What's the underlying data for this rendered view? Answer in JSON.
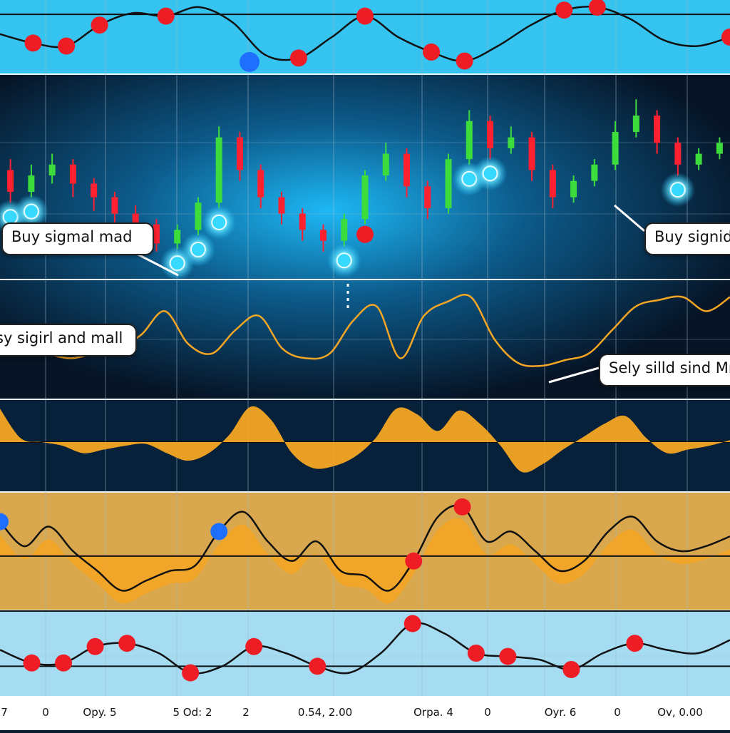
{
  "chart_data": [
    {
      "type": "line",
      "panel": "top-oscillator",
      "background": "#35c3f0",
      "series": [
        {
          "values": [
            0.55,
            0.4,
            0.35,
            0.7,
            0.9,
            0.85,
            1.0,
            0.75,
            0.2,
            0.15,
            0.5,
            0.85,
            0.5,
            0.25,
            0.1,
            0.35,
            0.7,
            0.95,
            1.0,
            0.8,
            0.45,
            0.35,
            0.5
          ],
          "line_color": "#111111"
        }
      ],
      "signal_points": [
        {
          "index": 1,
          "kind": "sell"
        },
        {
          "index": 2,
          "kind": "sell"
        },
        {
          "index": 3,
          "kind": "sell"
        },
        {
          "index": 5,
          "kind": "sell"
        },
        {
          "index": 9,
          "kind": "sell"
        },
        {
          "index": 11,
          "kind": "sell"
        },
        {
          "index": 13,
          "kind": "sell"
        },
        {
          "index": 14,
          "kind": "sell"
        },
        {
          "index": 17,
          "kind": "sell"
        },
        {
          "index": 18,
          "kind": "sell"
        },
        {
          "index": 22,
          "kind": "sell"
        }
      ],
      "reference_line": 0.88
    },
    {
      "type": "candlestick",
      "panel": "price",
      "background": "#0a2a44",
      "up_color": "#3ddc3d",
      "down_color": "#ff2030",
      "candles": [
        {
          "o": 60,
          "c": 52,
          "h": 64,
          "l": 48
        },
        {
          "o": 52,
          "c": 58,
          "h": 62,
          "l": 50
        },
        {
          "o": 58,
          "c": 62,
          "h": 66,
          "l": 55
        },
        {
          "o": 62,
          "c": 55,
          "h": 64,
          "l": 50
        },
        {
          "o": 55,
          "c": 50,
          "h": 57,
          "l": 45
        },
        {
          "o": 50,
          "c": 44,
          "h": 52,
          "l": 40
        },
        {
          "o": 44,
          "c": 40,
          "h": 47,
          "l": 36
        },
        {
          "o": 40,
          "c": 33,
          "h": 42,
          "l": 30
        },
        {
          "o": 33,
          "c": 38,
          "h": 40,
          "l": 31
        },
        {
          "o": 38,
          "c": 48,
          "h": 50,
          "l": 36
        },
        {
          "o": 48,
          "c": 72,
          "h": 76,
          "l": 46
        },
        {
          "o": 72,
          "c": 60,
          "h": 74,
          "l": 56
        },
        {
          "o": 60,
          "c": 50,
          "h": 62,
          "l": 46
        },
        {
          "o": 50,
          "c": 44,
          "h": 52,
          "l": 40
        },
        {
          "o": 44,
          "c": 38,
          "h": 46,
          "l": 34
        },
        {
          "o": 38,
          "c": 34,
          "h": 40,
          "l": 30
        },
        {
          "o": 34,
          "c": 42,
          "h": 44,
          "l": 32
        },
        {
          "o": 42,
          "c": 58,
          "h": 60,
          "l": 40
        },
        {
          "o": 58,
          "c": 66,
          "h": 70,
          "l": 56
        },
        {
          "o": 66,
          "c": 54,
          "h": 68,
          "l": 50
        },
        {
          "o": 54,
          "c": 46,
          "h": 56,
          "l": 42
        },
        {
          "o": 46,
          "c": 64,
          "h": 66,
          "l": 44
        },
        {
          "o": 64,
          "c": 78,
          "h": 82,
          "l": 62
        },
        {
          "o": 78,
          "c": 68,
          "h": 80,
          "l": 64
        },
        {
          "o": 68,
          "c": 72,
          "h": 76,
          "l": 66
        },
        {
          "o": 72,
          "c": 60,
          "h": 74,
          "l": 56
        },
        {
          "o": 60,
          "c": 50,
          "h": 62,
          "l": 46
        },
        {
          "o": 50,
          "c": 56,
          "h": 58,
          "l": 48
        },
        {
          "o": 56,
          "c": 62,
          "h": 64,
          "l": 54
        },
        {
          "o": 62,
          "c": 74,
          "h": 78,
          "l": 60
        },
        {
          "o": 74,
          "c": 80,
          "h": 86,
          "l": 72
        },
        {
          "o": 80,
          "c": 70,
          "h": 82,
          "l": 66
        },
        {
          "o": 70,
          "c": 62,
          "h": 72,
          "l": 58
        },
        {
          "o": 62,
          "c": 66,
          "h": 68,
          "l": 60
        },
        {
          "o": 66,
          "c": 70,
          "h": 72,
          "l": 64
        }
      ],
      "signal_points": [
        {
          "index": 0,
          "kind": "buy"
        },
        {
          "index": 1,
          "kind": "buy"
        },
        {
          "index": 8,
          "kind": "buy"
        },
        {
          "index": 9,
          "kind": "buy"
        },
        {
          "index": 10,
          "kind": "buy"
        },
        {
          "index": 16,
          "kind": "buy"
        },
        {
          "index": 17,
          "kind": "sell"
        },
        {
          "index": 22,
          "kind": "buy"
        },
        {
          "index": 23,
          "kind": "buy"
        },
        {
          "index": 32,
          "kind": "buy"
        }
      ]
    },
    {
      "type": "line",
      "panel": "orange-line",
      "background": "#0c3a5e",
      "series": [
        {
          "values": [
            0.6,
            0.45,
            0.35,
            0.3,
            0.35,
            0.4,
            0.55,
            0.8,
            0.45,
            0.35,
            0.6,
            0.75,
            0.4,
            0.3,
            0.35,
            0.7,
            0.85,
            0.3,
            0.75,
            0.9,
            0.95,
            0.5,
            0.25,
            0.22,
            0.28,
            0.35,
            0.6,
            0.85,
            0.92,
            0.95,
            0.8,
            0.95
          ],
          "line_color": "#f5a623"
        }
      ],
      "reference_line": 0.4
    },
    {
      "type": "area",
      "panel": "orange-histogram",
      "background": "#07213a",
      "fill_color": "#f5a623",
      "series": [
        {
          "values": [
            0.9,
            0.1,
            0.0,
            -0.1,
            -0.3,
            -0.2,
            -0.1,
            -0.05,
            -0.3,
            -0.5,
            -0.3,
            0.2,
            0.95,
            0.6,
            -0.3,
            -0.7,
            -0.65,
            -0.4,
            0.1,
            0.9,
            0.75,
            0.3,
            0.85,
            0.5,
            -0.1,
            -0.8,
            -0.6,
            -0.2,
            0.15,
            0.5,
            0.7,
            0.1,
            -0.3,
            -0.2,
            -0.1,
            0.05
          ]
        }
      ],
      "reference_line": 0.0
    },
    {
      "type": "area",
      "panel": "lower-oscillator",
      "background": "#d9a84e",
      "fill_color": "#f5a623",
      "series": [
        {
          "values": [
            0.8,
            0.55,
            0.75,
            0.5,
            0.3,
            0.1,
            0.2,
            0.3,
            0.35,
            0.7,
            0.9,
            0.6,
            0.4,
            0.6,
            0.3,
            0.25,
            0.1,
            0.4,
            0.85,
            0.95,
            0.6,
            0.7,
            0.5,
            0.3,
            0.4,
            0.7,
            0.85,
            0.6,
            0.5,
            0.55,
            0.65
          ],
          "line_color": "#111111"
        }
      ],
      "signal_points": [
        {
          "index": 0,
          "kind": "buy"
        },
        {
          "index": 9,
          "kind": "buy"
        },
        {
          "index": 17,
          "kind": "sell"
        },
        {
          "index": 19,
          "kind": "sell"
        }
      ],
      "reference_line": 0.45
    },
    {
      "type": "line",
      "panel": "bottom-oscillator",
      "background": "#a6dcf2",
      "series": [
        {
          "values": [
            0.55,
            0.35,
            0.35,
            0.6,
            0.65,
            0.5,
            0.2,
            0.3,
            0.6,
            0.5,
            0.3,
            0.2,
            0.5,
            0.95,
            0.8,
            0.5,
            0.45,
            0.4,
            0.25,
            0.5,
            0.65,
            0.55,
            0.5,
            0.7
          ],
          "line_color": "#111111"
        }
      ],
      "signal_points": [
        {
          "index": 1,
          "kind": "sell"
        },
        {
          "index": 2,
          "kind": "sell"
        },
        {
          "index": 3,
          "kind": "sell"
        },
        {
          "index": 4,
          "kind": "sell"
        },
        {
          "index": 6,
          "kind": "sell"
        },
        {
          "index": 8,
          "kind": "sell"
        },
        {
          "index": 10,
          "kind": "sell"
        },
        {
          "index": 13,
          "kind": "sell"
        },
        {
          "index": 15,
          "kind": "sell"
        },
        {
          "index": 16,
          "kind": "sell"
        },
        {
          "index": 18,
          "kind": "sell"
        },
        {
          "index": 20,
          "kind": "sell"
        }
      ],
      "reference_line": 0.3
    }
  ],
  "annotations": {
    "buy_left": "Buy sigmal mad",
    "buy_right": "Buy signid",
    "mid_left": "sy sigirl and mall",
    "sell_right": "Sely silld sind Mr"
  },
  "x_tick_labels": [
    "7",
    "0",
    "Opy. 5",
    "5  Od: 2",
    "2",
    "0.54, 2.00",
    "Orpa. 4",
    "0",
    "Oyr. 6",
    "0",
    "Ov, 0.00"
  ],
  "colors": {
    "buy_marker": "#38d9ff",
    "sell_marker": "#ee1c25",
    "blue_marker": "#1f6fff",
    "grid": "#9fb6c8"
  }
}
